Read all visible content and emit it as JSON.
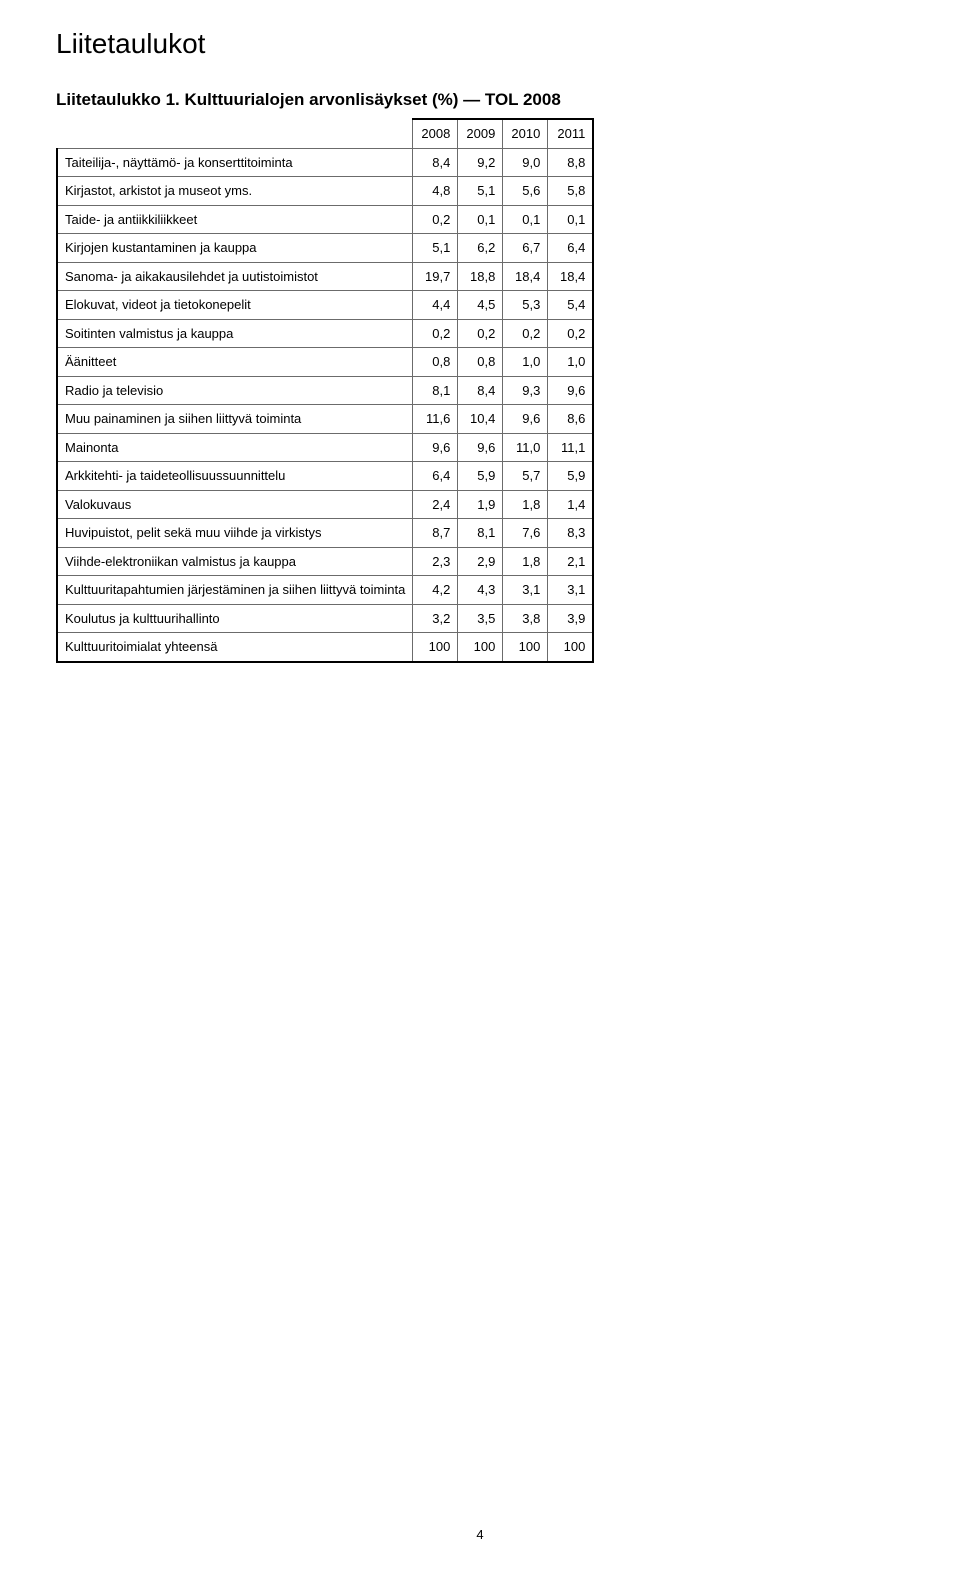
{
  "page": {
    "title": "Liitetaulukot",
    "number": "4",
    "background_color": "#ffffff",
    "text_color": "#000000"
  },
  "table": {
    "type": "table",
    "title": "Liitetaulukko 1. Kulttuurialojen arvonlisäykset (%) — TOL 2008",
    "border_color": "#6b6b6b",
    "outer_border_color": "#000000",
    "font_size_pt": 10,
    "columns": [
      "2008",
      "2009",
      "2010",
      "2011"
    ],
    "rows": [
      {
        "label": "Taiteilija-, näyttämö- ja konserttitoiminta",
        "values": [
          "8,4",
          "9,2",
          "9,0",
          "8,8"
        ]
      },
      {
        "label": "Kirjastot, arkistot ja museot yms.",
        "values": [
          "4,8",
          "5,1",
          "5,6",
          "5,8"
        ]
      },
      {
        "label": "Taide- ja antiikkiliikkeet",
        "values": [
          "0,2",
          "0,1",
          "0,1",
          "0,1"
        ]
      },
      {
        "label": "Kirjojen kustantaminen ja kauppa",
        "values": [
          "5,1",
          "6,2",
          "6,7",
          "6,4"
        ]
      },
      {
        "label": "Sanoma- ja aikakausilehdet ja uutistoimistot",
        "values": [
          "19,7",
          "18,8",
          "18,4",
          "18,4"
        ]
      },
      {
        "label": "Elokuvat, videot ja tietokonepelit",
        "values": [
          "4,4",
          "4,5",
          "5,3",
          "5,4"
        ]
      },
      {
        "label": "Soitinten valmistus ja kauppa",
        "values": [
          "0,2",
          "0,2",
          "0,2",
          "0,2"
        ]
      },
      {
        "label": "Äänitteet",
        "values": [
          "0,8",
          "0,8",
          "1,0",
          "1,0"
        ]
      },
      {
        "label": "Radio ja televisio",
        "values": [
          "8,1",
          "8,4",
          "9,3",
          "9,6"
        ]
      },
      {
        "label": "Muu painaminen ja siihen liittyvä toiminta",
        "values": [
          "11,6",
          "10,4",
          "9,6",
          "8,6"
        ]
      },
      {
        "label": "Mainonta",
        "values": [
          "9,6",
          "9,6",
          "11,0",
          "11,1"
        ]
      },
      {
        "label": "Arkkitehti- ja taideteollisuussuunnittelu",
        "values": [
          "6,4",
          "5,9",
          "5,7",
          "5,9"
        ]
      },
      {
        "label": "Valokuvaus",
        "values": [
          "2,4",
          "1,9",
          "1,8",
          "1,4"
        ]
      },
      {
        "label": "Huvipuistot, pelit sekä muu viihde ja virkistys",
        "values": [
          "8,7",
          "8,1",
          "7,6",
          "8,3"
        ]
      },
      {
        "label": "Viihde-elektroniikan valmistus ja kauppa",
        "values": [
          "2,3",
          "2,9",
          "1,8",
          "2,1"
        ]
      },
      {
        "label": "Kulttuuritapahtumien järjestäminen ja siihen liittyvä toiminta",
        "values": [
          "4,2",
          "4,3",
          "3,1",
          "3,1"
        ]
      },
      {
        "label": "Koulutus ja kulttuurihallinto",
        "values": [
          "3,2",
          "3,5",
          "3,8",
          "3,9"
        ]
      },
      {
        "label": "Kulttuuritoimialat yhteensä",
        "values": [
          "100",
          "100",
          "100",
          "100"
        ]
      }
    ]
  }
}
